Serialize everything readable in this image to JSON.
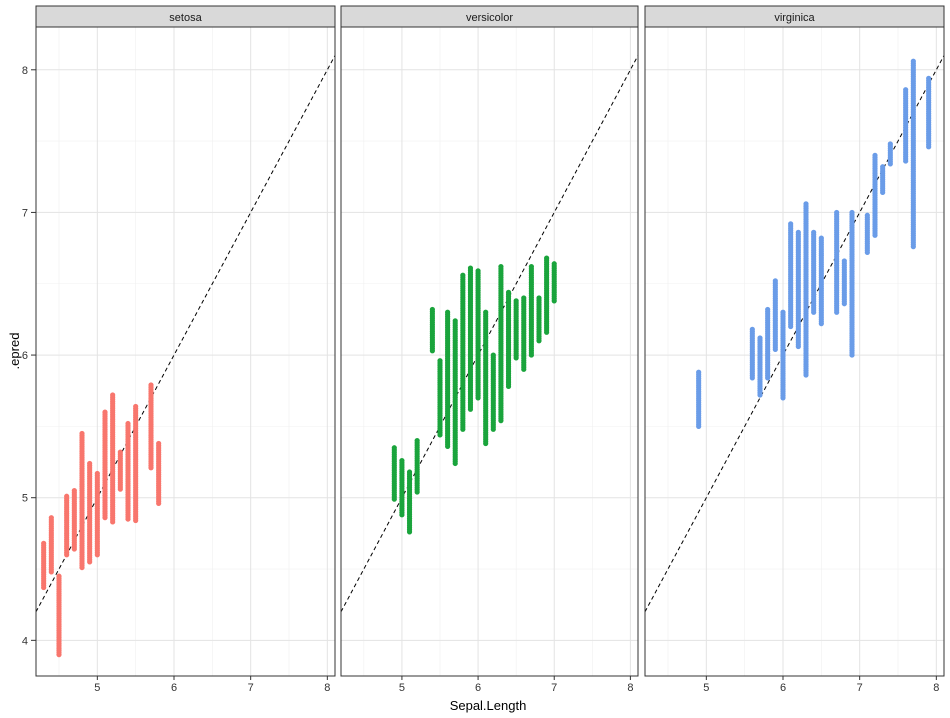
{
  "chart_data": {
    "type": "scatter",
    "facet_var": "Species",
    "xlabel": "Sepal.Length",
    "ylabel": ".epred",
    "xlim": [
      4.2,
      8.1
    ],
    "ylim": [
      3.75,
      8.3
    ],
    "x_ticks": [
      "5",
      "6",
      "7",
      "8"
    ],
    "y_ticks": [
      "4",
      "5",
      "6",
      "7",
      "8"
    ],
    "x_tick_values": [
      5,
      6,
      7,
      8
    ],
    "y_tick_values": [
      4,
      5,
      6,
      7,
      8
    ],
    "reference_line": {
      "type": "identity",
      "style": "dashed",
      "color": "#000000"
    },
    "grid": true,
    "panels": [
      {
        "name": "setosa",
        "color": "#F8766D",
        "ranges": [
          {
            "x": 4.3,
            "ymin": 4.37,
            "ymax": 4.68
          },
          {
            "x": 4.4,
            "ymin": 4.48,
            "ymax": 4.86
          },
          {
            "x": 4.5,
            "ymin": 3.9,
            "ymax": 4.45
          },
          {
            "x": 4.6,
            "ymin": 4.6,
            "ymax": 5.01
          },
          {
            "x": 4.7,
            "ymin": 4.64,
            "ymax": 5.05
          },
          {
            "x": 4.8,
            "ymin": 4.51,
            "ymax": 5.45
          },
          {
            "x": 4.9,
            "ymin": 4.55,
            "ymax": 5.24
          },
          {
            "x": 5.0,
            "ymin": 4.6,
            "ymax": 5.17
          },
          {
            "x": 5.1,
            "ymin": 4.86,
            "ymax": 5.6
          },
          {
            "x": 5.2,
            "ymin": 4.83,
            "ymax": 5.72
          },
          {
            "x": 5.3,
            "ymin": 5.06,
            "ymax": 5.32
          },
          {
            "x": 5.4,
            "ymin": 4.85,
            "ymax": 5.52
          },
          {
            "x": 5.5,
            "ymin": 4.84,
            "ymax": 5.64
          },
          {
            "x": 5.7,
            "ymin": 5.21,
            "ymax": 5.79
          },
          {
            "x": 5.8,
            "ymin": 4.96,
            "ymax": 5.38
          }
        ]
      },
      {
        "name": "versicolor",
        "color": "#1AA43C",
        "ranges": [
          {
            "x": 4.9,
            "ymin": 4.99,
            "ymax": 5.35
          },
          {
            "x": 5.0,
            "ymin": 4.88,
            "ymax": 5.26
          },
          {
            "x": 5.1,
            "ymin": 4.76,
            "ymax": 5.18
          },
          {
            "x": 5.2,
            "ymin": 5.04,
            "ymax": 5.4
          },
          {
            "x": 5.4,
            "ymin": 6.03,
            "ymax": 6.32
          },
          {
            "x": 5.5,
            "ymin": 5.44,
            "ymax": 5.96
          },
          {
            "x": 5.6,
            "ymin": 5.36,
            "ymax": 6.3
          },
          {
            "x": 5.7,
            "ymin": 5.24,
            "ymax": 6.24
          },
          {
            "x": 5.8,
            "ymin": 5.48,
            "ymax": 6.56
          },
          {
            "x": 5.9,
            "ymin": 5.62,
            "ymax": 6.61
          },
          {
            "x": 6.0,
            "ymin": 5.7,
            "ymax": 6.59
          },
          {
            "x": 6.1,
            "ymin": 5.38,
            "ymax": 6.3
          },
          {
            "x": 6.2,
            "ymin": 5.48,
            "ymax": 6.0
          },
          {
            "x": 6.3,
            "ymin": 5.54,
            "ymax": 6.62
          },
          {
            "x": 6.4,
            "ymin": 5.78,
            "ymax": 6.44
          },
          {
            "x": 6.5,
            "ymin": 5.98,
            "ymax": 6.38
          },
          {
            "x": 6.6,
            "ymin": 5.9,
            "ymax": 6.4
          },
          {
            "x": 6.7,
            "ymin": 6.0,
            "ymax": 6.62
          },
          {
            "x": 6.8,
            "ymin": 6.1,
            "ymax": 6.4
          },
          {
            "x": 6.9,
            "ymin": 6.16,
            "ymax": 6.68
          },
          {
            "x": 7.0,
            "ymin": 6.38,
            "ymax": 6.64
          }
        ]
      },
      {
        "name": "virginica",
        "color": "#6A9CE8",
        "ranges": [
          {
            "x": 4.9,
            "ymin": 5.5,
            "ymax": 5.88
          },
          {
            "x": 5.6,
            "ymin": 5.84,
            "ymax": 6.18
          },
          {
            "x": 5.7,
            "ymin": 5.72,
            "ymax": 6.12
          },
          {
            "x": 5.8,
            "ymin": 5.84,
            "ymax": 6.32
          },
          {
            "x": 5.9,
            "ymin": 6.04,
            "ymax": 6.52
          },
          {
            "x": 6.0,
            "ymin": 5.7,
            "ymax": 6.3
          },
          {
            "x": 6.1,
            "ymin": 6.2,
            "ymax": 6.92
          },
          {
            "x": 6.2,
            "ymin": 6.06,
            "ymax": 6.86
          },
          {
            "x": 6.3,
            "ymin": 5.86,
            "ymax": 7.06
          },
          {
            "x": 6.4,
            "ymin": 6.3,
            "ymax": 6.86
          },
          {
            "x": 6.5,
            "ymin": 6.22,
            "ymax": 6.82
          },
          {
            "x": 6.7,
            "ymin": 6.3,
            "ymax": 7.0
          },
          {
            "x": 6.8,
            "ymin": 6.36,
            "ymax": 6.66
          },
          {
            "x": 6.9,
            "ymin": 6.0,
            "ymax": 7.0
          },
          {
            "x": 7.1,
            "ymin": 6.72,
            "ymax": 6.98
          },
          {
            "x": 7.2,
            "ymin": 6.84,
            "ymax": 7.4
          },
          {
            "x": 7.3,
            "ymin": 7.14,
            "ymax": 7.32
          },
          {
            "x": 7.4,
            "ymin": 7.34,
            "ymax": 7.48
          },
          {
            "x": 7.6,
            "ymin": 7.36,
            "ymax": 7.86
          },
          {
            "x": 7.7,
            "ymin": 6.76,
            "ymax": 8.06
          },
          {
            "x": 7.9,
            "ymin": 7.46,
            "ymax": 7.94
          }
        ]
      }
    ]
  }
}
